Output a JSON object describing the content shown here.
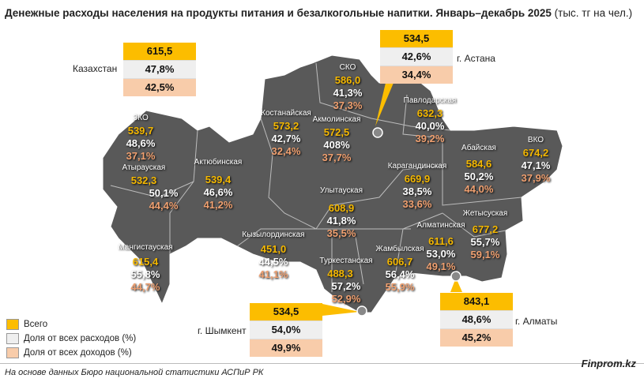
{
  "title": {
    "bold": "Денежные расходы населения на продукты питания и безалкогольные напитки. Январь–декабрь 2025",
    "normal": " (тыс. тг на чел.)"
  },
  "colors": {
    "total": "#fcbd00",
    "expenses": "#efefef",
    "income": "#f8ccaa",
    "map": "#595959"
  },
  "boxes": {
    "kz": {
      "label": "Казахстан",
      "total": "615,5",
      "exp": "47,8%",
      "inc": "42,5%"
    },
    "astana": {
      "label": "г. Астана",
      "total": "534,5",
      "exp": "42,6%",
      "inc": "34,4%"
    },
    "shymkent": {
      "label": "г. Шымкент",
      "total": "534,5",
      "exp": "54,0%",
      "inc": "49,9%"
    },
    "almaty": {
      "label": "г. Алматы",
      "total": "843,1",
      "exp": "48,6%",
      "inc": "45,2%"
    }
  },
  "regions": [
    {
      "name": "ЗКО",
      "total": "539,7",
      "exp": "48,6%",
      "inc": "37,1%"
    },
    {
      "name": "Атырауская",
      "total": "532,3",
      "exp": "50,1%",
      "inc": "44,4%"
    },
    {
      "name": "Актюбинская",
      "total": "539,4",
      "exp": "46,6%",
      "inc": "41,2%"
    },
    {
      "name": "Костанайская",
      "total": "573,2",
      "exp": "42,7%",
      "inc": "32,4%"
    },
    {
      "name": "СКО",
      "total": "586,0",
      "exp": "41,3%",
      "inc": "37,3%"
    },
    {
      "name": "Акмолинская",
      "total": "572,5",
      "exp": "408%",
      "inc": "37,7%"
    },
    {
      "name": "Павлодарская",
      "total": "632,3",
      "exp": "40,0%",
      "inc": "39,2%"
    },
    {
      "name": "Карагандинская",
      "total": "669,9",
      "exp": "38,5%",
      "inc": "33,6%"
    },
    {
      "name": "Улытауская",
      "total": "608,9",
      "exp": "41,8%",
      "inc": "35,5%"
    },
    {
      "name": "Абайская",
      "total": "584,6",
      "exp": "50,2%",
      "inc": "44,0%"
    },
    {
      "name": "ВКО",
      "total": "674,2",
      "exp": "47,1%",
      "inc": "37,9%"
    },
    {
      "name": "Жетысуская",
      "total": "677,2",
      "exp": "55,7%",
      "inc": "59,1%"
    },
    {
      "name": "Алматинская",
      "total": "611,6",
      "exp": "53,0%",
      "inc": "49,1%"
    },
    {
      "name": "Жамбылская",
      "total": "606,7",
      "exp": "56,4%",
      "inc": "55,9%"
    },
    {
      "name": "Туркестанская",
      "total": "488,3",
      "exp": "57,2%",
      "inc": "52,9%"
    },
    {
      "name": "Кызылординская",
      "total": "451,0",
      "exp": "44,5%",
      "inc": "41,1%"
    },
    {
      "name": "Мангистауская",
      "total": "615,4",
      "exp": "55,8%",
      "inc": "44,7%"
    }
  ],
  "legend": [
    "Всего",
    "Доля от всех расходов (%)",
    "Доля от всех доходов (%)"
  ],
  "footer": "На основе данных Бюро национальной статистики АСПиР РК",
  "brand": "Finprom.kz"
}
